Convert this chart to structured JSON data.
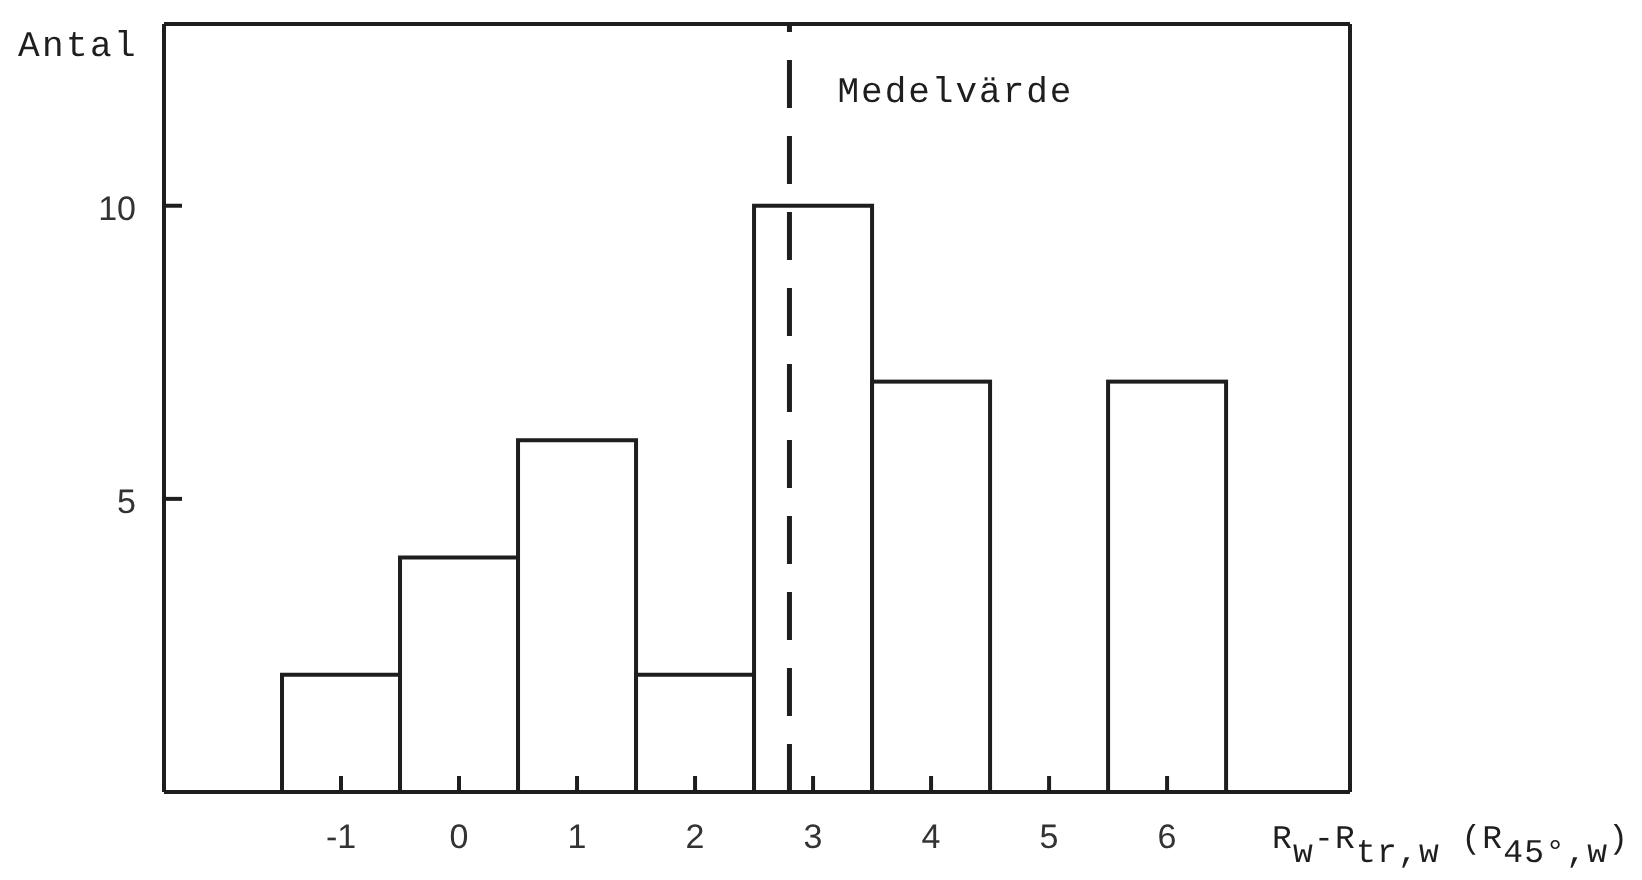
{
  "chart_data": {
    "type": "histogram",
    "xlabel": "R$_{w}$-R$_{tr,w}$ (R$_{45°,w}$)",
    "ylabel": "Antal",
    "bins": [
      -1.5,
      -0.5,
      0.5,
      1.5,
      2.5,
      3.5,
      4.5,
      5.5,
      6.5
    ],
    "values": [
      2,
      4,
      6,
      2,
      10,
      7,
      0,
      7
    ],
    "color": "#ffffff",
    "xlim": [
      -2.5,
      7.55
    ],
    "xticks": [
      -1,
      0,
      1,
      2,
      3,
      4,
      5,
      6
    ],
    "ylim": [
      0,
      13.1
    ],
    "yticks": [
      5,
      10
    ],
    "ref_lines": [
      {
        "axis": "x",
        "value": 2.8,
        "label": "Medelvärde",
        "line_style": "dashed"
      }
    ]
  }
}
